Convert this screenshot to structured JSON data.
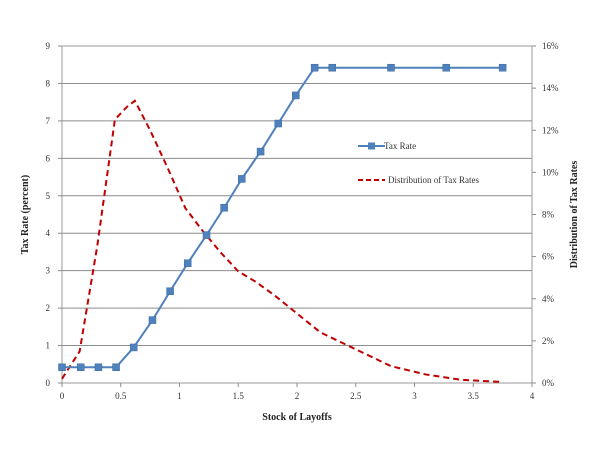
{
  "chart_data": {
    "type": "line",
    "xlabel": "Stock of Layoffs",
    "ylabel_left": "Tax Rate (percent)",
    "ylabel_right": "Distribution of Tax Rates",
    "xlim": [
      0,
      4
    ],
    "ylim_left": [
      0,
      9
    ],
    "ylim_right": [
      0,
      16
    ],
    "x_ticks": [
      "0",
      "0.5",
      "1",
      "1.5",
      "2",
      "2.5",
      "3",
      "3.5",
      "4"
    ],
    "y_left_ticks": [
      "0",
      "1",
      "2",
      "3",
      "4",
      "5",
      "6",
      "7",
      "8",
      "9"
    ],
    "y_right_ticks": [
      "0%",
      "2%",
      "4%",
      "6%",
      "8%",
      "10%",
      "12%",
      "14%",
      "16%"
    ],
    "grid": "horizontal",
    "legend_position": "right-middle",
    "series": [
      {
        "name": "Tax Rate",
        "axis": "left",
        "style": "solid-square-markers",
        "color": "#4f81bd",
        "x": [
          0,
          0.16,
          0.31,
          0.46,
          0.61,
          0.77,
          0.92,
          1.07,
          1.23,
          1.38,
          1.53,
          1.69,
          1.84,
          1.99,
          2.15,
          2.3,
          2.8,
          3.27,
          3.75
        ],
        "y": [
          0.42,
          0.42,
          0.42,
          0.42,
          0.95,
          1.68,
          2.45,
          3.2,
          3.95,
          4.68,
          5.45,
          6.18,
          6.93,
          7.68,
          8.42,
          8.42,
          8.42,
          8.42,
          8.42
        ]
      },
      {
        "name": "Distribution of Tax Rates",
        "axis": "right",
        "style": "dashed",
        "color": "#c00000",
        "x": [
          0,
          0.15,
          0.3,
          0.45,
          0.55,
          0.62,
          0.75,
          0.9,
          1.05,
          1.2,
          1.35,
          1.5,
          1.65,
          1.8,
          2.0,
          2.2,
          2.5,
          2.8,
          3.1,
          3.4,
          3.75
        ],
        "y": [
          0.2,
          1.5,
          6.5,
          12.5,
          13.1,
          13.4,
          12.0,
          10.2,
          8.3,
          7.2,
          6.2,
          5.3,
          4.8,
          4.2,
          3.3,
          2.4,
          1.6,
          0.8,
          0.4,
          0.15,
          0.05
        ]
      }
    ]
  }
}
